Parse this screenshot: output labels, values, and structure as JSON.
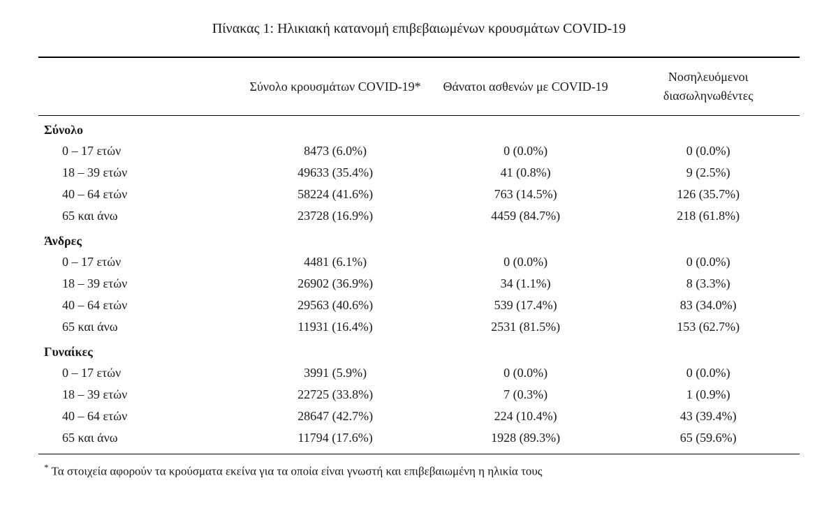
{
  "title": "Πίνακας 1: Ηλικιακή κατανομή επιβεβαιωμένων κρουσμάτων COVID-19",
  "columns": {
    "c1": "Σύνολο κρουσμάτων COVID-19*",
    "c2": "Θάνατοι ασθενών με COVID-19",
    "c3": "Νοσηλευόμενοι διασωληνωθέντες"
  },
  "groups": {
    "total": {
      "label": "Σύνολο",
      "rows": {
        "r0": {
          "age": "0 – 17 ετών",
          "cases": "8473 (6.0%)",
          "deaths": "0 (0.0%)",
          "intub": "0 (0.0%)"
        },
        "r1": {
          "age": "18 – 39 ετών",
          "cases": "49633 (35.4%)",
          "deaths": "41 (0.8%)",
          "intub": "9 (2.5%)"
        },
        "r2": {
          "age": "40 – 64 ετών",
          "cases": "58224 (41.6%)",
          "deaths": "763 (14.5%)",
          "intub": "126 (35.7%)"
        },
        "r3": {
          "age": "65 και άνω",
          "cases": "23728 (16.9%)",
          "deaths": "4459 (84.7%)",
          "intub": "218 (61.8%)"
        }
      }
    },
    "men": {
      "label": "Άνδρες",
      "rows": {
        "r0": {
          "age": "0 – 17 ετών",
          "cases": "4481 (6.1%)",
          "deaths": "0 (0.0%)",
          "intub": "0 (0.0%)"
        },
        "r1": {
          "age": "18 – 39 ετών",
          "cases": "26902 (36.9%)",
          "deaths": "34 (1.1%)",
          "intub": "8 (3.3%)"
        },
        "r2": {
          "age": "40 – 64 ετών",
          "cases": "29563 (40.6%)",
          "deaths": "539 (17.4%)",
          "intub": "83 (34.0%)"
        },
        "r3": {
          "age": "65 και άνω",
          "cases": "11931 (16.4%)",
          "deaths": "2531 (81.5%)",
          "intub": "153 (62.7%)"
        }
      }
    },
    "women": {
      "label": "Γυναίκες",
      "rows": {
        "r0": {
          "age": "0 – 17 ετών",
          "cases": "3991 (5.9%)",
          "deaths": "0 (0.0%)",
          "intub": "0 (0.0%)"
        },
        "r1": {
          "age": "18 – 39 ετών",
          "cases": "22725 (33.8%)",
          "deaths": "7 (0.3%)",
          "intub": "1 (0.9%)"
        },
        "r2": {
          "age": "40 – 64 ετών",
          "cases": "28647 (42.7%)",
          "deaths": "224 (10.4%)",
          "intub": "43 (39.4%)"
        },
        "r3": {
          "age": "65 και άνω",
          "cases": "11794 (17.6%)",
          "deaths": "1928 (89.3%)",
          "intub": "65 (59.6%)"
        }
      }
    }
  },
  "footnote": {
    "marker": "*",
    "text": "Τα στοιχεία αφορούν τα κρούσματα εκείνα για τα οποία είναι γνωστή και επιβεβαιωμένη η ηλικία τους"
  },
  "style": {
    "background_color": "#ffffff",
    "text_color": "#1a1a1a",
    "border_color": "#000000",
    "title_fontsize": 20,
    "body_fontsize": 18,
    "footnote_fontsize": 17,
    "font_family": "serif",
    "table_type": "table"
  }
}
